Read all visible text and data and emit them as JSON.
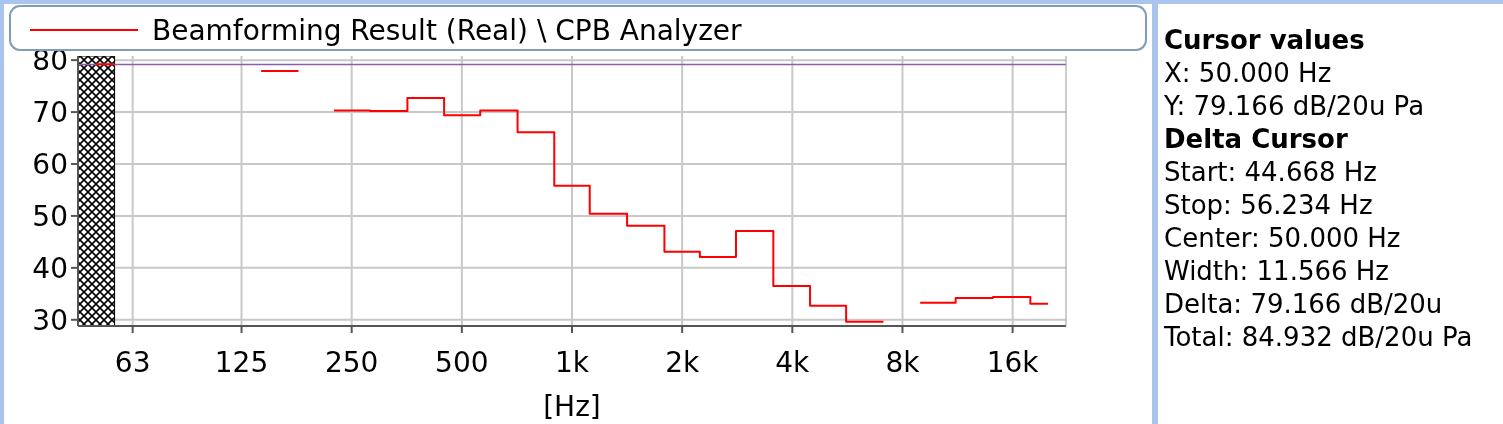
{
  "chart_data": {
    "type": "step",
    "xlabel": "[Hz]",
    "log": "x",
    "grid": true,
    "legend": "top",
    "x": [
      50,
      63,
      125,
      160,
      200,
      250,
      315,
      400,
      500,
      630,
      800,
      1000,
      1250,
      1600,
      2000,
      2500,
      3150,
      4000,
      5000,
      6300,
      8000,
      10000,
      12500,
      16000,
      20000
    ],
    "series": [
      {
        "name": "Beamforming Result (Real) \\ CPB Analyzer",
        "color": "#ff0000",
        "values": [
          79.2,
          null,
          null,
          77.9,
          null,
          70.3,
          70.2,
          72.7,
          69.4,
          70.3,
          66.1,
          55.8,
          50.4,
          48.1,
          43.1,
          42.1,
          47.1,
          36.5,
          32.7,
          29.6,
          null,
          33.3,
          34.2,
          34.4,
          33.1
        ]
      }
    ],
    "xlim": [
      44.668,
      22387
    ],
    "ylim": [
      28.8,
      80.8
    ],
    "xticks": [
      {
        "value": 63,
        "label": "63"
      },
      {
        "value": 125,
        "label": "125"
      },
      {
        "value": 250,
        "label": "250"
      },
      {
        "value": 500,
        "label": "500"
      },
      {
        "value": 1000,
        "label": "1k"
      },
      {
        "value": 2000,
        "label": "2k"
      },
      {
        "value": 4000,
        "label": "4k"
      },
      {
        "value": 8000,
        "label": "8k"
      },
      {
        "value": 16000,
        "label": "16k"
      }
    ],
    "yticks": [
      30,
      40,
      50,
      60,
      70,
      80
    ],
    "ref_lines": [
      {
        "axis": "y",
        "value": 79.166,
        "color": "#8a5fa8"
      }
    ],
    "bands": [
      {
        "axis": "x",
        "from": 44.668,
        "to": 56.234,
        "color": "#000000"
      }
    ],
    "annotations": [
      "Cursor values",
      "X: 50.000 Hz",
      "Y: 79.166 dB/20u Pa",
      "Delta Cursor",
      "Start: 44.668 Hz",
      "Stop: 56.234 Hz",
      "Center: 50.000 Hz",
      "Width: 11.566 Hz",
      "Delta: 79.166 dB/20u",
      "Total: 84.932 dB/20u Pa"
    ]
  }
}
